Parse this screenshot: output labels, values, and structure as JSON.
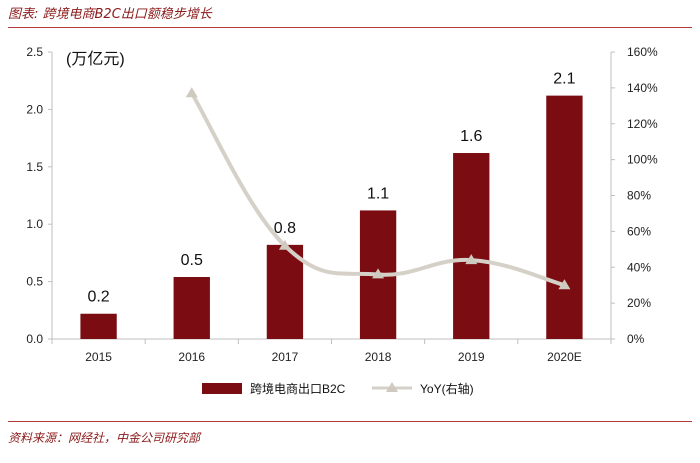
{
  "title": "图表: 跨境电商B2C出口额稳步增长",
  "source": "资料来源：网经社，中金公司研究部",
  "colors": {
    "bar": "#7b0c12",
    "line": "#d6d1c8",
    "marker": "#cfcac0",
    "title_text": "#8b1a1a",
    "rule": "#b03a3a"
  },
  "chart_data": {
    "type": "bar",
    "categories": [
      "2015",
      "2016",
      "2017",
      "2018",
      "2019",
      "2020E"
    ],
    "unit_label": "(万亿元)",
    "series": [
      {
        "name": "跨境电商出口B2C",
        "type": "bar",
        "axis": "left",
        "values": [
          0.22,
          0.54,
          0.82,
          1.12,
          1.62,
          2.12
        ],
        "data_labels": [
          "0.2",
          "0.5",
          "0.8",
          "1.1",
          "1.6",
          "2.1"
        ]
      },
      {
        "name": "YoY(右轴)",
        "type": "line",
        "axis": "right",
        "values": [
          null,
          1.37,
          0.52,
          0.36,
          0.44,
          0.3
        ]
      }
    ],
    "y_left": {
      "min": 0,
      "max": 2.5,
      "ticks": [
        "0.0",
        "0.5",
        "1.0",
        "1.5",
        "2.0",
        "2.5"
      ]
    },
    "y_right": {
      "min": 0,
      "max": 1.6,
      "ticks": [
        "0%",
        "20%",
        "40%",
        "60%",
        "80%",
        "100%",
        "120%",
        "140%",
        "160%"
      ]
    },
    "legend_position": "bottom",
    "grid": false
  }
}
